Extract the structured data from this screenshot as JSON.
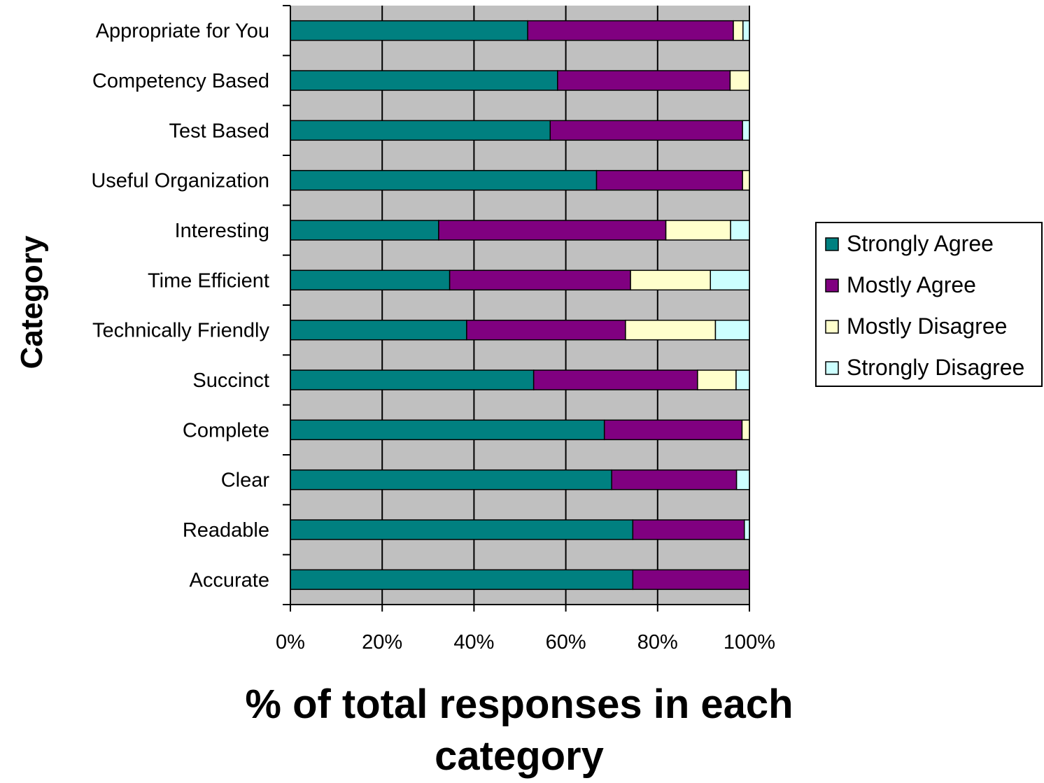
{
  "chart_data": {
    "type": "bar",
    "orientation": "horizontal",
    "stacked": "percent",
    "title": "",
    "xlabel": "% of total responses in each category",
    "ylabel": "Category",
    "xlim": [
      0,
      100
    ],
    "xticks": [
      "0%",
      "20%",
      "40%",
      "60%",
      "80%",
      "100%"
    ],
    "grid": true,
    "legend_position": "right",
    "categories": [
      "Appropriate for You",
      "Competency Based",
      "Test Based",
      "Useful Organization",
      "Interesting",
      "Time Efficient",
      "Technically Friendly",
      "Succinct",
      "Complete",
      "Clear",
      "Readable",
      "Accurate"
    ],
    "series": [
      {
        "name": "Strongly Agree",
        "color": "#008080",
        "values": [
          51.7,
          58.2,
          56.6,
          66.7,
          32.3,
          34.7,
          38.4,
          53.0,
          68.4,
          70.0,
          74.6,
          74.6
        ]
      },
      {
        "name": "Mostly Agree",
        "color": "#800080",
        "values": [
          44.8,
          37.6,
          41.9,
          31.8,
          49.5,
          39.4,
          34.6,
          35.7,
          30.0,
          27.2,
          24.3,
          25.4
        ]
      },
      {
        "name": "Mostly Disagree",
        "color": "#ffffcc",
        "values": [
          2.1,
          4.2,
          0.0,
          1.5,
          14.1,
          17.4,
          19.6,
          8.4,
          1.6,
          0.0,
          0.0,
          0.0
        ]
      },
      {
        "name": "Strongly Disagree",
        "color": "#ccffff",
        "values": [
          1.4,
          0.0,
          1.5,
          0.0,
          4.1,
          8.5,
          7.4,
          2.9,
          0.0,
          2.8,
          1.1,
          0.0
        ]
      }
    ],
    "plot_background": "#c0c0c0"
  }
}
